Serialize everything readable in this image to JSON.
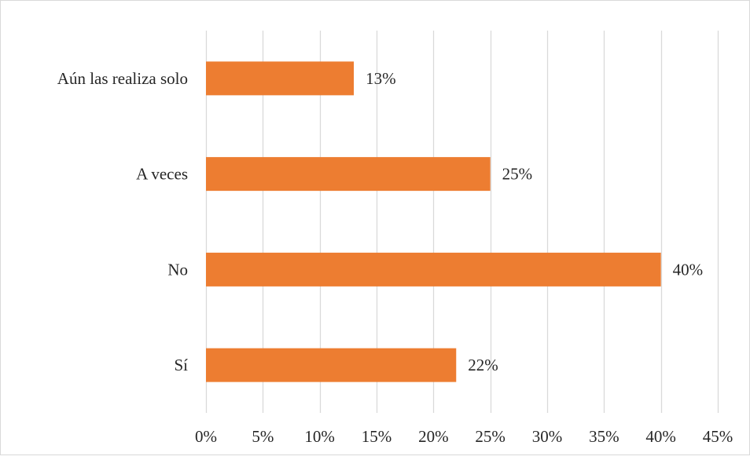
{
  "chart_data": {
    "type": "bar",
    "orientation": "horizontal",
    "categories": [
      "Aún las realiza solo",
      "A veces",
      "No",
      "Sí"
    ],
    "values": [
      13,
      25,
      40,
      22
    ],
    "data_labels": [
      "13%",
      "25%",
      "40%",
      "22%"
    ],
    "xlim": [
      0,
      45
    ],
    "x_ticks": [
      0,
      5,
      10,
      15,
      20,
      25,
      30,
      35,
      40,
      45
    ],
    "x_tick_labels": [
      "0%",
      "5%",
      "10%",
      "15%",
      "20%",
      "25%",
      "30%",
      "35%",
      "40%",
      "45%"
    ],
    "grid": true,
    "bar_color": "#ED7D31",
    "grid_color": "#D9D9D9"
  }
}
